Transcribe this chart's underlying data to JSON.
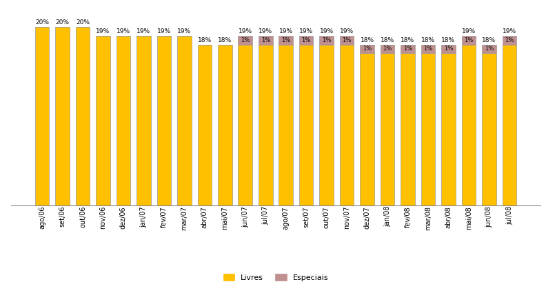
{
  "categories": [
    "ago/06",
    "set/06",
    "out/06",
    "nov/06",
    "dez/06",
    "jan/07",
    "fev/07",
    "mar/07",
    "abr/07",
    "mai/07",
    "jun/07",
    "jul/07",
    "ago/07",
    "set/07",
    "out/07",
    "nov/07",
    "dez/07",
    "jan/08",
    "fev/08",
    "mar/08",
    "abr/08",
    "mai/08",
    "jun/08",
    "jul/08"
  ],
  "livres": [
    20,
    20,
    20,
    19,
    19,
    19,
    19,
    19,
    18,
    18,
    18,
    18,
    18,
    18,
    18,
    18,
    17,
    17,
    17,
    17,
    17,
    18,
    17,
    18
  ],
  "especiais": [
    0,
    0,
    0,
    0,
    0,
    0,
    0,
    0,
    0,
    0,
    1,
    1,
    1,
    1,
    1,
    1,
    1,
    1,
    1,
    1,
    1,
    1,
    1,
    1
  ],
  "livres_color": "#FFC000",
  "especiais_color": "#C09090",
  "bar_edge_color": "#999999",
  "background_color": "#FFFFFF",
  "ylim_max": 22,
  "legend_livres": "Livres",
  "legend_especiais": "Especiais",
  "label_fontsize": 6.5,
  "tick_fontsize": 7,
  "fig_width": 7.92,
  "fig_height": 4.25,
  "bar_width": 0.7
}
